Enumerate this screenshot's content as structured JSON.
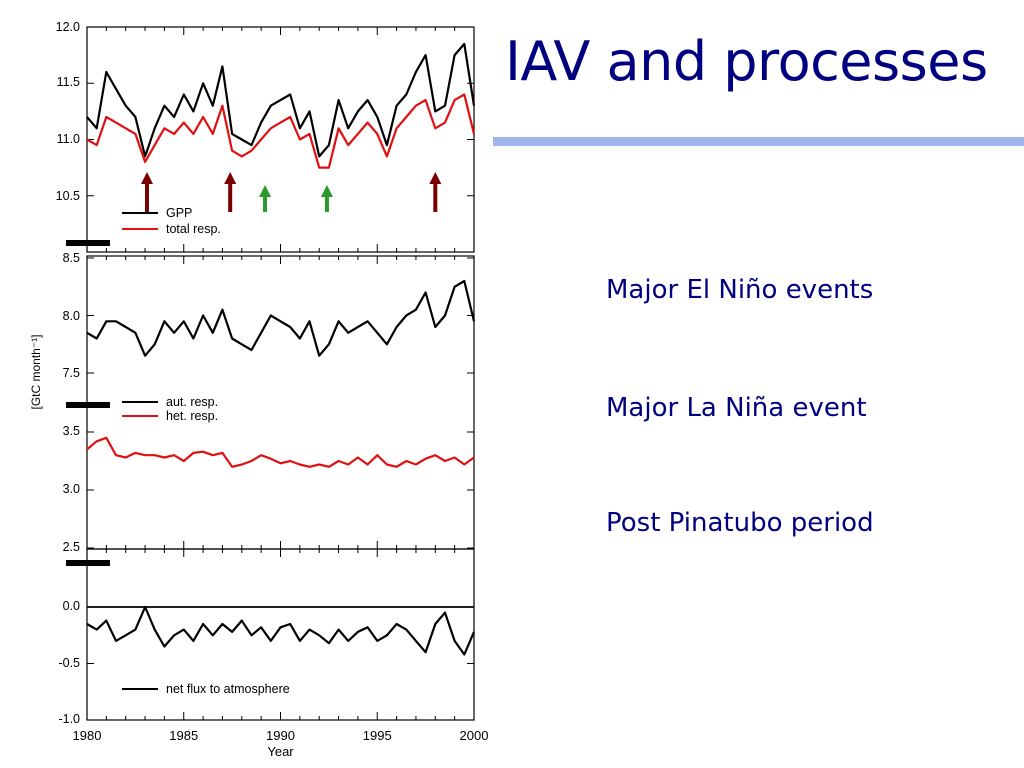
{
  "slide": {
    "title": "IAV and processes",
    "accent_color": "#9fb5ee",
    "title_color": "#000080",
    "bullets": [
      "Major El Niño events",
      "Major La Niña event",
      "Post Pinatubo period"
    ]
  },
  "chart_data": [
    {
      "type": "line",
      "panel": "top",
      "ylim": [
        10.0,
        12.0
      ],
      "yticks": [
        "12.0",
        "11.5",
        "11.0",
        "10.5"
      ],
      "xlim": [
        1980,
        2000
      ],
      "legend": [
        "GPP",
        "total resp."
      ],
      "series": [
        {
          "name": "GPP",
          "color": "#000000",
          "x": [
            1980,
            1980.5,
            1981,
            1981.5,
            1982,
            1982.5,
            1983,
            1983.5,
            1984,
            1984.5,
            1985,
            1985.5,
            1986,
            1986.5,
            1987,
            1987.5,
            1988,
            1988.5,
            1989,
            1989.5,
            1990,
            1990.5,
            1991,
            1991.5,
            1992,
            1992.5,
            1993,
            1993.5,
            1994,
            1994.5,
            1995,
            1995.5,
            1996,
            1996.5,
            1997,
            1997.5,
            1998,
            1998.5,
            1999,
            1999.5,
            2000
          ],
          "y": [
            11.2,
            11.1,
            11.6,
            11.45,
            11.3,
            11.2,
            10.85,
            11.1,
            11.3,
            11.2,
            11.4,
            11.25,
            11.5,
            11.3,
            11.65,
            11.05,
            11.0,
            10.95,
            11.15,
            11.3,
            11.35,
            11.4,
            11.1,
            11.25,
            10.85,
            10.95,
            11.35,
            11.1,
            11.25,
            11.35,
            11.2,
            10.95,
            11.3,
            11.4,
            11.6,
            11.75,
            11.25,
            11.3,
            11.75,
            11.85,
            11.3
          ]
        },
        {
          "name": "total resp.",
          "color": "#e01010",
          "x": [
            1980,
            1980.5,
            1981,
            1981.5,
            1982,
            1982.5,
            1983,
            1983.5,
            1984,
            1984.5,
            1985,
            1985.5,
            1986,
            1986.5,
            1987,
            1987.5,
            1988,
            1988.5,
            1989,
            1989.5,
            1990,
            1990.5,
            1991,
            1991.5,
            1992,
            1992.5,
            1993,
            1993.5,
            1994,
            1994.5,
            1995,
            1995.5,
            1996,
            1996.5,
            1997,
            1997.5,
            1998,
            1998.5,
            1999,
            1999.5,
            2000
          ],
          "y": [
            11.0,
            10.95,
            11.2,
            11.15,
            11.1,
            11.05,
            10.8,
            10.95,
            11.1,
            11.05,
            11.15,
            11.05,
            11.2,
            11.05,
            11.3,
            10.9,
            10.85,
            10.9,
            11.0,
            11.1,
            11.15,
            11.2,
            11.0,
            11.05,
            10.75,
            10.75,
            11.1,
            10.95,
            11.05,
            11.15,
            11.05,
            10.85,
            11.1,
            11.2,
            11.3,
            11.35,
            11.1,
            11.15,
            11.35,
            11.4,
            11.05
          ]
        }
      ]
    },
    {
      "type": "line",
      "panel": "middle",
      "ylim": [
        2.5,
        8.5
      ],
      "broken_axis": true,
      "yticks": [
        "8.5",
        "8.0",
        "7.5",
        "3.5",
        "3.0",
        "2.5"
      ],
      "xlim": [
        1980,
        2000
      ],
      "ylabel": "[GtC month⁻¹]",
      "legend": [
        "aut. resp.",
        "het. resp."
      ],
      "series": [
        {
          "name": "aut. resp.",
          "color": "#000000",
          "x": [
            1980,
            1980.5,
            1981,
            1981.5,
            1982,
            1982.5,
            1983,
            1983.5,
            1984,
            1984.5,
            1985,
            1985.5,
            1986,
            1986.5,
            1987,
            1987.5,
            1988,
            1988.5,
            1989,
            1989.5,
            1990,
            1990.5,
            1991,
            1991.5,
            1992,
            1992.5,
            1993,
            1993.5,
            1994,
            1994.5,
            1995,
            1995.5,
            1996,
            1996.5,
            1997,
            1997.5,
            1998,
            1998.5,
            1999,
            1999.5,
            2000
          ],
          "y": [
            7.85,
            7.8,
            7.95,
            7.95,
            7.9,
            7.85,
            7.65,
            7.75,
            7.95,
            7.85,
            7.95,
            7.8,
            8.0,
            7.85,
            8.05,
            7.8,
            7.75,
            7.7,
            7.85,
            8.0,
            7.95,
            7.9,
            7.8,
            7.95,
            7.65,
            7.75,
            7.95,
            7.85,
            7.9,
            7.95,
            7.85,
            7.75,
            7.9,
            8.0,
            8.05,
            8.2,
            7.9,
            8.0,
            8.25,
            8.3,
            7.95
          ]
        },
        {
          "name": "het. resp.",
          "color": "#e01010",
          "x": [
            1980,
            1980.5,
            1981,
            1981.5,
            1982,
            1982.5,
            1983,
            1983.5,
            1984,
            1984.5,
            1985,
            1985.5,
            1986,
            1986.5,
            1987,
            1987.5,
            1988,
            1988.5,
            1989,
            1989.5,
            1990,
            1990.5,
            1991,
            1991.5,
            1992,
            1992.5,
            1993,
            1993.5,
            1994,
            1994.5,
            1995,
            1995.5,
            1996,
            1996.5,
            1997,
            1997.5,
            1998,
            1998.5,
            1999,
            1999.5,
            2000
          ],
          "y": [
            3.35,
            3.42,
            3.45,
            3.3,
            3.28,
            3.32,
            3.3,
            3.3,
            3.28,
            3.3,
            3.25,
            3.32,
            3.33,
            3.3,
            3.32,
            3.2,
            3.22,
            3.25,
            3.3,
            3.27,
            3.23,
            3.25,
            3.22,
            3.2,
            3.22,
            3.2,
            3.25,
            3.22,
            3.28,
            3.22,
            3.3,
            3.22,
            3.2,
            3.25,
            3.22,
            3.27,
            3.3,
            3.25,
            3.28,
            3.22,
            3.28
          ]
        }
      ]
    },
    {
      "type": "line",
      "panel": "bottom",
      "ylim": [
        -1.0,
        0.5
      ],
      "yticks": [
        "0.0",
        "-0.5",
        "-1.0"
      ],
      "xlim": [
        1980,
        2000
      ],
      "xticks": [
        "1980",
        "1985",
        "1990",
        "1995",
        "2000"
      ],
      "xlabel": "Year",
      "legend": [
        "net flux to atmosphere"
      ],
      "series": [
        {
          "name": "net flux to atmosphere",
          "color": "#000000",
          "x": [
            1980,
            1980.5,
            1981,
            1981.5,
            1982,
            1982.5,
            1983,
            1983.5,
            1984,
            1984.5,
            1985,
            1985.5,
            1986,
            1986.5,
            1987,
            1987.5,
            1988,
            1988.5,
            1989,
            1989.5,
            1990,
            1990.5,
            1991,
            1991.5,
            1992,
            1992.5,
            1993,
            1993.5,
            1994,
            1994.5,
            1995,
            1995.5,
            1996,
            1996.5,
            1997,
            1997.5,
            1998,
            1998.5,
            1999,
            1999.5,
            2000
          ],
          "y": [
            -0.15,
            -0.2,
            -0.12,
            -0.3,
            -0.25,
            -0.2,
            0.0,
            -0.2,
            -0.35,
            -0.25,
            -0.2,
            -0.3,
            -0.15,
            -0.25,
            -0.15,
            -0.22,
            -0.12,
            -0.25,
            -0.18,
            -0.3,
            -0.18,
            -0.15,
            -0.3,
            -0.2,
            -0.25,
            -0.32,
            -0.2,
            -0.3,
            -0.22,
            -0.18,
            -0.3,
            -0.25,
            -0.15,
            -0.2,
            -0.3,
            -0.4,
            -0.15,
            -0.05,
            -0.3,
            -0.42,
            -0.22
          ]
        }
      ]
    }
  ],
  "arrows": [
    {
      "year": 1983.1,
      "kind": "El Niño",
      "color": "#7a0000"
    },
    {
      "year": 1987.4,
      "kind": "El Niño",
      "color": "#7a0000"
    },
    {
      "year": 1989.2,
      "kind": "La Niña",
      "color": "#2a9a2a"
    },
    {
      "year": 1992.4,
      "kind": "Pinatubo",
      "color": "#2a9a2a"
    },
    {
      "year": 1998.0,
      "kind": "El Niño",
      "color": "#7a0000"
    }
  ]
}
